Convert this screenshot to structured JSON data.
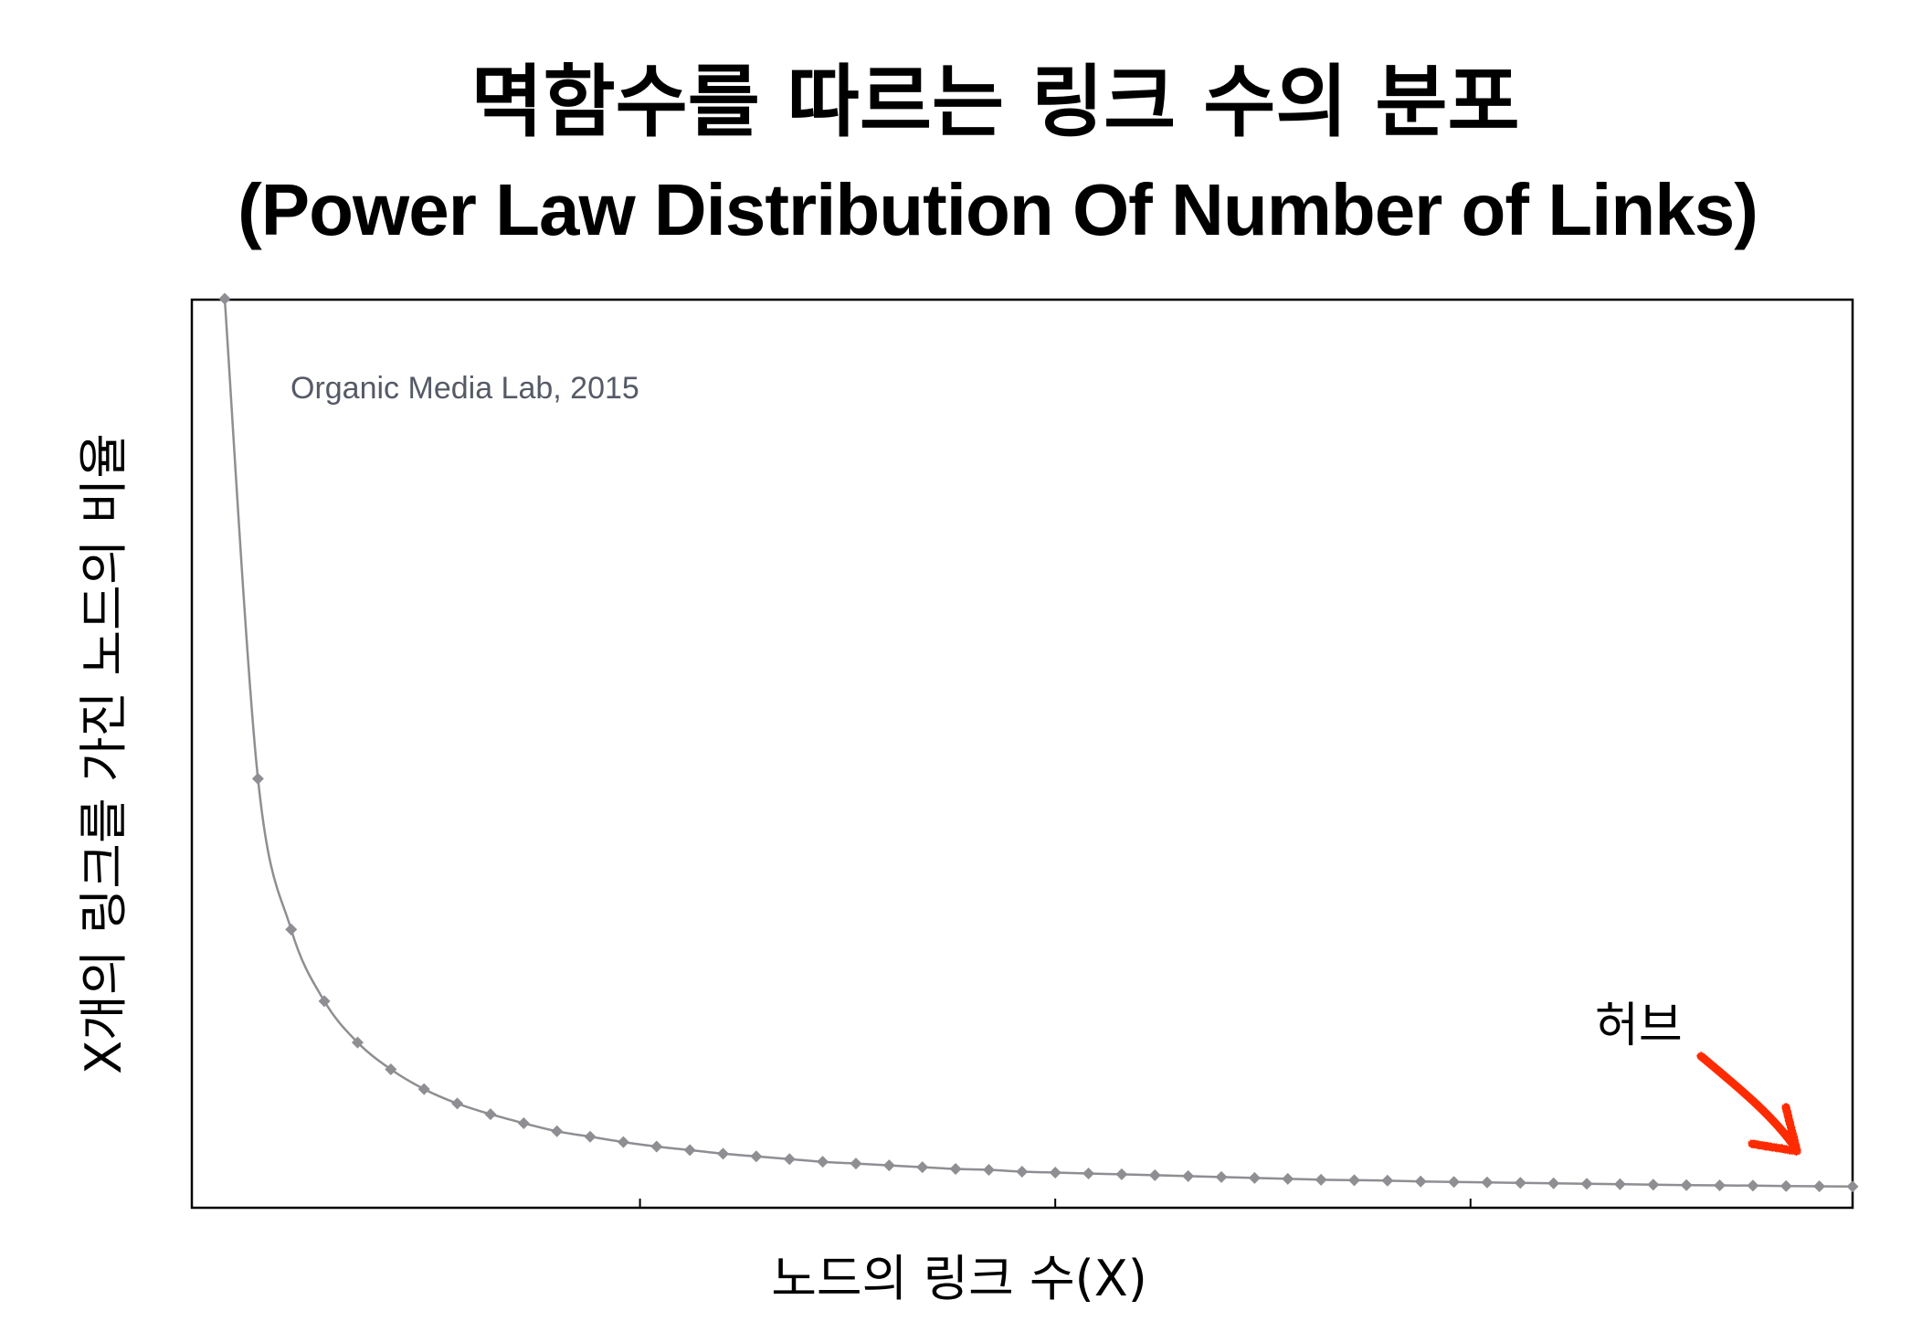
{
  "title_line1": "멱함수를 따르는 링크 수의 분포",
  "title_line2": "(Power Law Distribution Of Number of Links)",
  "chart_data": {
    "type": "line",
    "title": "멱함수를 따르는 링크 수의 분포 (Power Law Distribution Of Number of Links)",
    "xlabel": "노드의 링크 수(X)",
    "ylabel": "X개의 링크를 가진 노드의 비율",
    "watermark": "Organic Media Lab, 2015",
    "annotation": {
      "text": "허브",
      "arrow_color": "#ff2a00"
    },
    "series_color": "#8e8e93",
    "marker": "diamond",
    "grid": false,
    "xlim": [
      1,
      50
    ],
    "ylim": [
      0,
      1
    ],
    "x_ticks": [
      13.5,
      26,
      38.5
    ],
    "x": [
      1,
      2,
      3,
      4,
      5,
      6,
      7,
      8,
      9,
      10,
      11,
      12,
      13,
      14,
      15,
      16,
      17,
      18,
      19,
      20,
      21,
      22,
      23,
      24,
      25,
      26,
      27,
      28,
      29,
      30,
      31,
      32,
      33,
      34,
      35,
      36,
      37,
      38,
      39,
      40,
      41,
      42,
      43,
      44,
      45,
      46,
      47,
      48,
      49,
      50
    ],
    "y": [
      1.0,
      0.465,
      0.297,
      0.217,
      0.171,
      0.141,
      0.119,
      0.103,
      0.091,
      0.081,
      0.072,
      0.066,
      0.06,
      0.055,
      0.051,
      0.047,
      0.044,
      0.041,
      0.038,
      0.036,
      0.034,
      0.032,
      0.03,
      0.029,
      0.027,
      0.026,
      0.025,
      0.024,
      0.023,
      0.022,
      0.021,
      0.02,
      0.019,
      0.018,
      0.0175,
      0.017,
      0.016,
      0.0155,
      0.015,
      0.0145,
      0.014,
      0.0135,
      0.013,
      0.0125,
      0.012,
      0.0117,
      0.0114,
      0.011,
      0.0107,
      0.0104
    ]
  }
}
